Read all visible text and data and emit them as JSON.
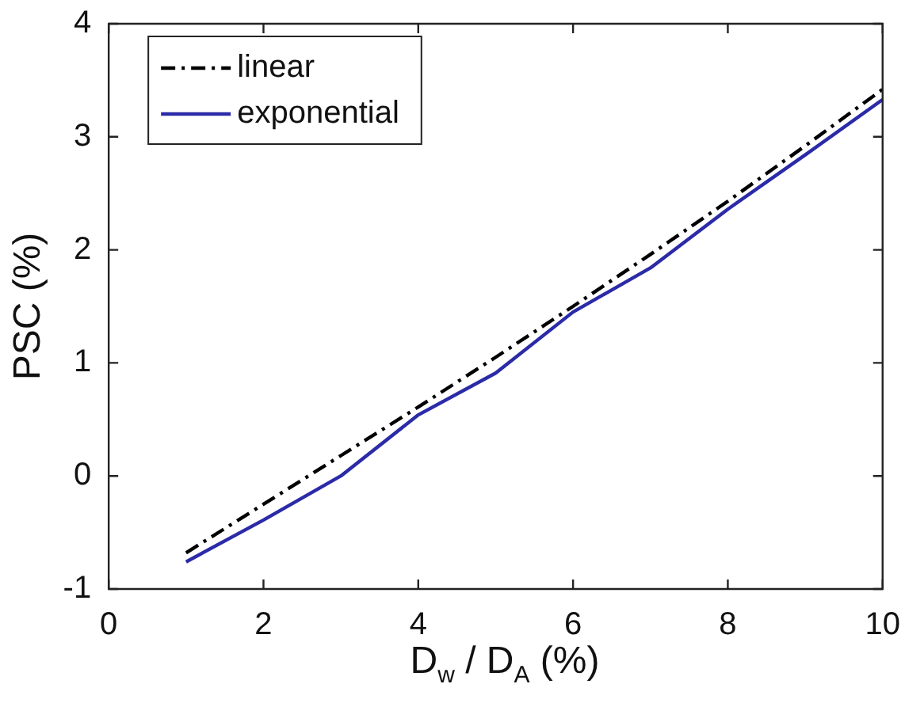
{
  "chart_data": {
    "type": "line",
    "xlabel": "D$_{w}$ / D$_{A}$ (%)",
    "ylabel": "PSC (%)",
    "x": [
      1,
      2,
      3,
      4,
      5,
      6,
      7,
      8,
      9,
      10
    ],
    "series": [
      {
        "name": "linear",
        "color": "#000000",
        "line_style": "dashdot",
        "values": [
          -0.68,
          -0.25,
          0.18,
          0.61,
          1.05,
          1.5,
          1.96,
          2.43,
          2.92,
          3.42
        ]
      },
      {
        "name": "exponential",
        "color": "#2b2ba8",
        "line_style": "solid",
        "values": [
          -0.76,
          -0.39,
          0.0,
          0.54,
          0.91,
          1.45,
          1.84,
          2.36,
          2.84,
          3.33
        ]
      }
    ],
    "xlim": [
      0,
      10
    ],
    "xticks": [
      0,
      2,
      4,
      6,
      8,
      10
    ],
    "ylim": [
      -1,
      4
    ],
    "yticks": [
      -1,
      0,
      1,
      2,
      3,
      4
    ],
    "grid": false,
    "legend": "top left",
    "marker": "none"
  }
}
